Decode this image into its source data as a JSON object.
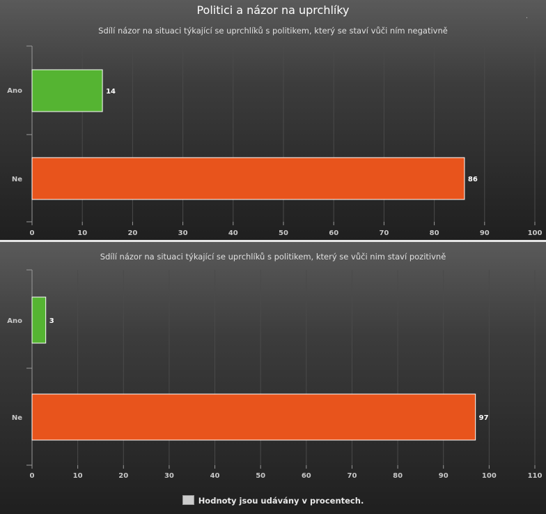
{
  "page": {
    "title": "Politici a názor na uprchlíky",
    "legend_label": "Hodnoty jsou udávány v procentech.",
    "legend_color": "#cccccc",
    "corner_mark": "."
  },
  "colors": {
    "ano": "#55b432",
    "ne": "#e8541c",
    "grid": "#4a4a4a",
    "axis": "#9a9a9a",
    "tick_label": "#c8c8c8",
    "bar_border": "#ffffff"
  },
  "chart_data": [
    {
      "type": "bar",
      "orientation": "horizontal",
      "title": "Sdílí názor na situaci týkající se uprchlíků s politikem, který se staví vůči ním negativně",
      "categories": [
        "Ano",
        "Ne"
      ],
      "values": [
        14,
        86
      ],
      "xlim": [
        0,
        100
      ],
      "xticks": [
        0,
        10,
        20,
        30,
        40,
        50,
        60,
        70,
        80,
        90,
        100
      ],
      "grid": true,
      "data_labels": true
    },
    {
      "type": "bar",
      "orientation": "horizontal",
      "title": "Sdílí názor na situaci týkající se uprchlíků s politikem, který se vůči nim staví pozitivně",
      "categories": [
        "Ano",
        "Ne"
      ],
      "values": [
        3,
        97
      ],
      "xlim": [
        0,
        110
      ],
      "xticks": [
        0,
        10,
        20,
        30,
        40,
        50,
        60,
        70,
        80,
        90,
        100,
        110
      ],
      "grid": true,
      "data_labels": true
    }
  ]
}
